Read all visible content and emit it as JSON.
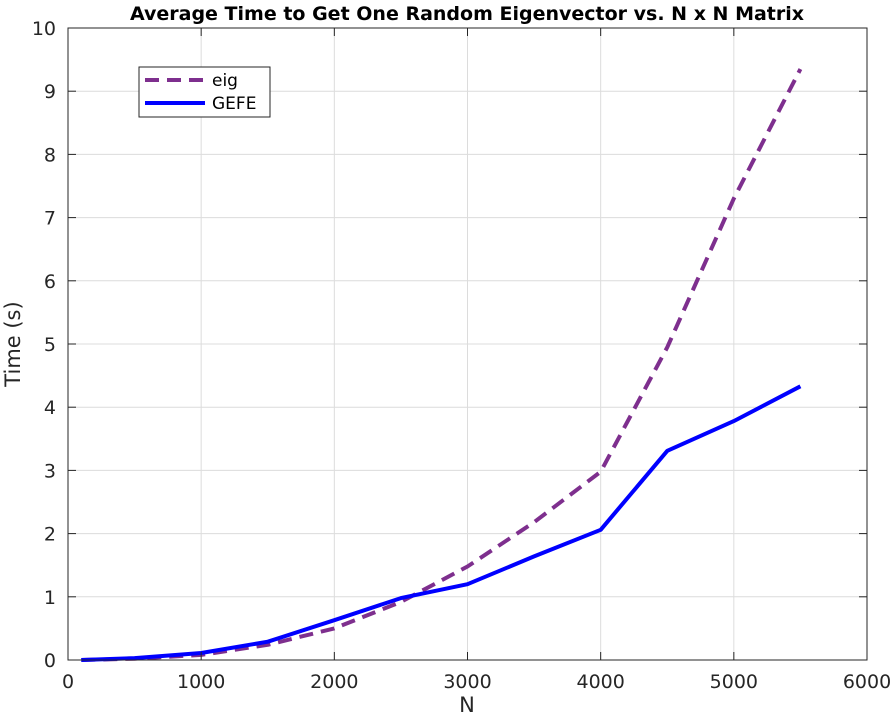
{
  "chart_data": {
    "type": "line",
    "title": "Average Time to Get One Random Eigenvector vs. N x N Matrix",
    "xlabel": "N",
    "ylabel": "Time (s)",
    "xlim": [
      0,
      6000
    ],
    "ylim": [
      0,
      10
    ],
    "xticks": [
      0,
      1000,
      2000,
      3000,
      4000,
      5000,
      6000
    ],
    "yticks": [
      0,
      1,
      2,
      3,
      4,
      5,
      6,
      7,
      8,
      9,
      10
    ],
    "grid": true,
    "legend_position": "top-left",
    "series": [
      {
        "name": "eig",
        "color": "#7E2F8E",
        "style": "dashed",
        "x": [
          100,
          500,
          1000,
          1500,
          2000,
          2500,
          3000,
          3500,
          4000,
          4500,
          5000,
          5500
        ],
        "y": [
          0.0,
          0.02,
          0.08,
          0.24,
          0.5,
          0.92,
          1.48,
          2.18,
          2.98,
          4.95,
          7.3,
          9.35
        ]
      },
      {
        "name": "GEFE",
        "color": "#0000FF",
        "style": "solid",
        "x": [
          100,
          500,
          1000,
          1500,
          2000,
          2500,
          3000,
          3500,
          4000,
          4500,
          5000,
          5500
        ],
        "y": [
          0.0,
          0.03,
          0.11,
          0.29,
          0.63,
          0.98,
          1.2,
          1.64,
          2.06,
          3.31,
          3.78,
          4.33
        ]
      }
    ]
  }
}
